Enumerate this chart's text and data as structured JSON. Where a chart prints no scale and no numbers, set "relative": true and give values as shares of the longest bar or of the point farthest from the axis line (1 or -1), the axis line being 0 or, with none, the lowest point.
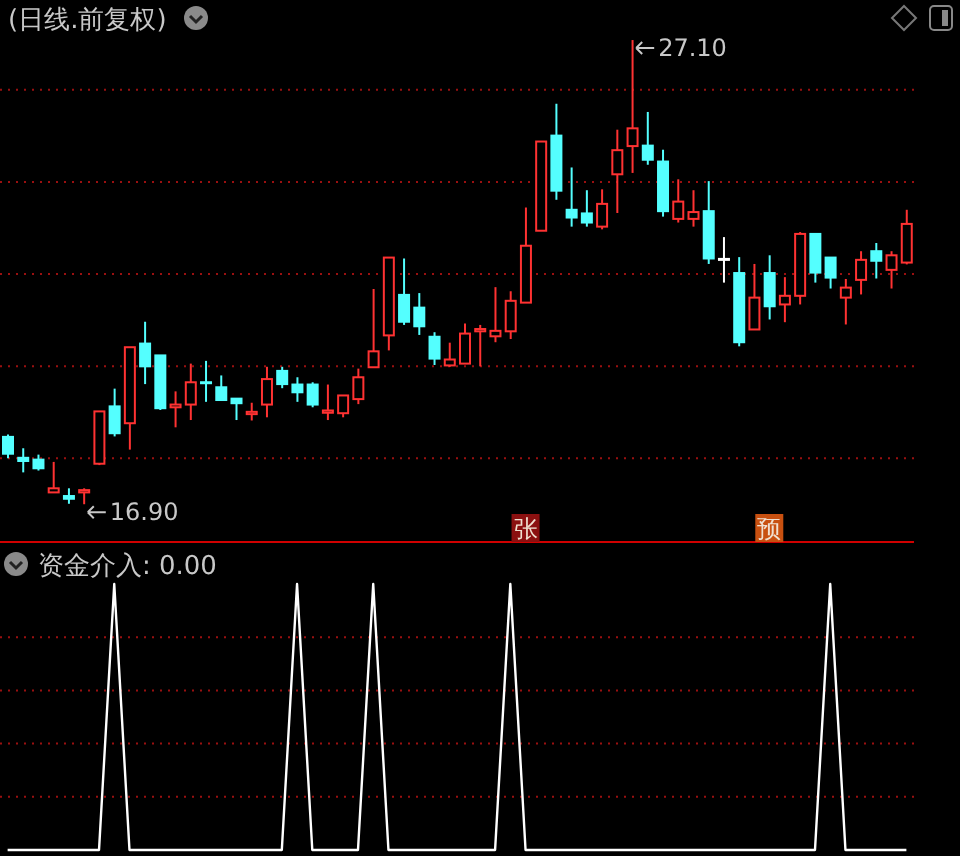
{
  "chart_data": [
    {
      "type": "candlestick",
      "title": "(日线.前复权)",
      "categories": [
        null,
        null,
        null,
        null,
        null,
        null,
        null,
        null,
        null,
        null,
        null,
        null,
        null,
        null,
        null,
        null,
        null,
        null,
        null,
        null,
        null,
        null,
        null,
        null,
        null,
        null,
        null,
        null,
        null,
        null,
        null,
        null,
        null,
        null,
        null,
        null,
        null,
        null,
        null,
        null,
        null,
        null,
        null,
        null,
        null,
        null,
        null,
        null,
        null,
        null,
        null,
        null,
        null,
        null,
        null,
        null,
        null,
        null,
        null,
        null
      ],
      "ohlc": [
        [
          18.38,
          18.43,
          17.91,
          18.01
        ],
        [
          17.92,
          18.13,
          17.6,
          17.85
        ],
        [
          17.88,
          17.99,
          17.64,
          17.69
        ],
        [
          17.16,
          17.83,
          17.15,
          17.25
        ],
        [
          17.08,
          17.25,
          16.91,
          17.02
        ],
        [
          17.16,
          17.25,
          16.9,
          17.21
        ],
        [
          17.79,
          18.94,
          17.76,
          18.94
        ],
        [
          19.05,
          19.44,
          18.39,
          18.46
        ],
        [
          18.68,
          20.35,
          18.1,
          20.35
        ],
        [
          20.43,
          20.91,
          19.54,
          19.93
        ],
        [
          20.17,
          20.17,
          18.97,
          19.01
        ],
        [
          19.03,
          19.38,
          18.59,
          19.09
        ],
        [
          19.09,
          19.99,
          18.75,
          19.58
        ],
        [
          19.57,
          20.05,
          19.15,
          19.54
        ],
        [
          19.47,
          19.73,
          19.18,
          19.19
        ],
        [
          19.22,
          19.22,
          18.75,
          19.12
        ],
        [
          18.88,
          19.13,
          18.74,
          18.93
        ],
        [
          19.09,
          19.92,
          18.81,
          19.65
        ],
        [
          19.83,
          19.92,
          19.45,
          19.54
        ],
        [
          19.53,
          19.69,
          19.15,
          19.36
        ],
        [
          19.53,
          19.58,
          19.03,
          19.09
        ],
        [
          18.91,
          19.53,
          18.75,
          18.96
        ],
        [
          18.9,
          19.29,
          18.81,
          19.29
        ],
        [
          19.21,
          19.88,
          19.1,
          19.69
        ],
        [
          19.91,
          21.63,
          19.91,
          20.26
        ],
        [
          20.61,
          22.32,
          20.28,
          22.32
        ],
        [
          21.5,
          22.3,
          20.84,
          20.91
        ],
        [
          21.22,
          21.54,
          20.62,
          20.81
        ],
        [
          20.58,
          20.68,
          19.96,
          20.1
        ],
        [
          19.95,
          20.45,
          19.92,
          20.08
        ],
        [
          19.99,
          20.87,
          19.98,
          20.65
        ],
        [
          20.7,
          20.84,
          19.93,
          20.75
        ],
        [
          20.59,
          21.67,
          20.46,
          20.71
        ],
        [
          20.7,
          21.58,
          20.53,
          21.37
        ],
        [
          21.33,
          23.42,
          21.33,
          22.58
        ],
        [
          22.91,
          24.87,
          22.91,
          24.87
        ],
        [
          25.0,
          25.7,
          23.59,
          23.79
        ],
        [
          23.37,
          24.3,
          23.0,
          23.2
        ],
        [
          23.29,
          23.8,
          23.0,
          23.09
        ],
        [
          23.0,
          23.82,
          22.94,
          23.5
        ],
        [
          24.15,
          25.13,
          23.3,
          24.68
        ],
        [
          24.77,
          27.1,
          24.18,
          25.16
        ],
        [
          24.78,
          25.52,
          24.36,
          24.47
        ],
        [
          24.43,
          24.69,
          23.22,
          23.34
        ],
        [
          23.17,
          24.04,
          23.09,
          23.55
        ],
        [
          23.17,
          23.8,
          23.0,
          23.32
        ],
        [
          23.34,
          24.0,
          22.18,
          22.3
        ],
        [
          22.28,
          22.77,
          21.77,
          22.28
        ],
        [
          21.98,
          22.33,
          20.37,
          20.46
        ],
        [
          20.74,
          22.18,
          20.74,
          21.44
        ],
        [
          21.98,
          22.37,
          20.96,
          21.25
        ],
        [
          21.29,
          21.89,
          20.9,
          21.48
        ],
        [
          21.48,
          22.88,
          21.29,
          22.84
        ],
        [
          22.84,
          22.84,
          21.77,
          21.99
        ],
        [
          22.32,
          22.32,
          21.64,
          21.88
        ],
        [
          21.44,
          21.85,
          20.85,
          21.66
        ],
        [
          21.83,
          22.46,
          21.51,
          22.27
        ],
        [
          22.46,
          22.64,
          21.86,
          22.25
        ],
        [
          22.05,
          22.46,
          21.64,
          22.37
        ],
        [
          22.21,
          23.37,
          22.17,
          23.06
        ]
      ],
      "colors": [
        "#54ffff",
        "#54ffff",
        "#54ffff",
        "#ff3232",
        "#54ffff",
        "#ff3232",
        "#ff3232",
        "#54ffff",
        "#ff3232",
        "#54ffff",
        "#54ffff",
        "#ff3232",
        "#ff3232",
        "#54ffff",
        "#54ffff",
        "#54ffff",
        "#ff3232",
        "#ff3232",
        "#54ffff",
        "#54ffff",
        "#54ffff",
        "#ff3232",
        "#ff3232",
        "#ff3232",
        "#ff3232",
        "#ff3232",
        "#54ffff",
        "#54ffff",
        "#54ffff",
        "#ff3232",
        "#ff3232",
        "#ff3232",
        "#ff3232",
        "#ff3232",
        "#ff3232",
        "#ff3232",
        "#54ffff",
        "#54ffff",
        "#54ffff",
        "#ff3232",
        "#ff3232",
        "#ff3232",
        "#54ffff",
        "#54ffff",
        "#ff3232",
        "#ff3232",
        "#54ffff",
        "#ffffff",
        "#54ffff",
        "#ff3232",
        "#54ffff",
        "#ff3232",
        "#ff3232",
        "#54ffff",
        "#54ffff",
        "#ff3232",
        "#ff3232",
        "#54ffff",
        "#ff3232",
        "#ff3232"
      ],
      "ylim": [
        16.07,
        27.98
      ],
      "yticks": [
        {
          "value": 17.91,
          "label": null
        },
        {
          "value": 19.93,
          "label": null
        },
        {
          "value": 21.96,
          "label": null
        },
        {
          "value": 23.98,
          "label": null
        },
        {
          "value": 26.01,
          "label": null
        }
      ],
      "grid": "y",
      "annotations": [
        "27.10",
        "16.90",
        "张",
        "预"
      ]
    },
    {
      "type": "line",
      "title": "资金介入: 0.00",
      "categories": [
        null,
        null,
        null,
        null,
        null,
        null,
        null,
        null,
        null,
        null,
        null,
        null,
        null,
        null,
        null,
        null,
        null,
        null,
        null,
        null,
        null,
        null,
        null,
        null,
        null,
        null,
        null,
        null,
        null,
        null,
        null,
        null,
        null,
        null,
        null,
        null,
        null,
        null,
        null,
        null,
        null,
        null,
        null,
        null,
        null,
        null,
        null,
        null,
        null,
        null,
        null,
        null,
        null,
        null,
        null,
        null,
        null,
        null,
        null,
        null
      ],
      "series": [
        {
          "color": "#ffffff",
          "values": [
            0,
            0,
            0,
            0,
            0,
            0,
            0,
            1,
            0,
            0,
            0,
            0,
            0,
            0,
            0,
            0,
            0,
            0,
            0,
            1,
            0,
            0,
            0,
            0,
            1,
            0,
            0,
            0,
            0,
            0,
            0,
            0,
            0,
            1,
            0,
            0,
            0,
            0,
            0,
            0,
            0,
            0,
            0,
            0,
            0,
            0,
            0,
            0,
            0,
            0,
            0,
            0,
            0,
            0,
            1,
            0,
            0,
            0,
            0,
            0
          ]
        }
      ],
      "relative": true,
      "ref_lines": [
        {
          "axis": "y",
          "value": 0.2,
          "label": null,
          "color": "#9a1010",
          "line_style": "dotted"
        },
        {
          "axis": "y",
          "value": 0.4,
          "label": null,
          "color": "#9a1010",
          "line_style": "dotted"
        },
        {
          "axis": "y",
          "value": 0.6,
          "label": null,
          "color": "#9a1010",
          "line_style": "dotted"
        },
        {
          "axis": "y",
          "value": 0.8,
          "label": null,
          "color": "#9a1010",
          "line_style": "dotted"
        }
      ]
    }
  ]
}
